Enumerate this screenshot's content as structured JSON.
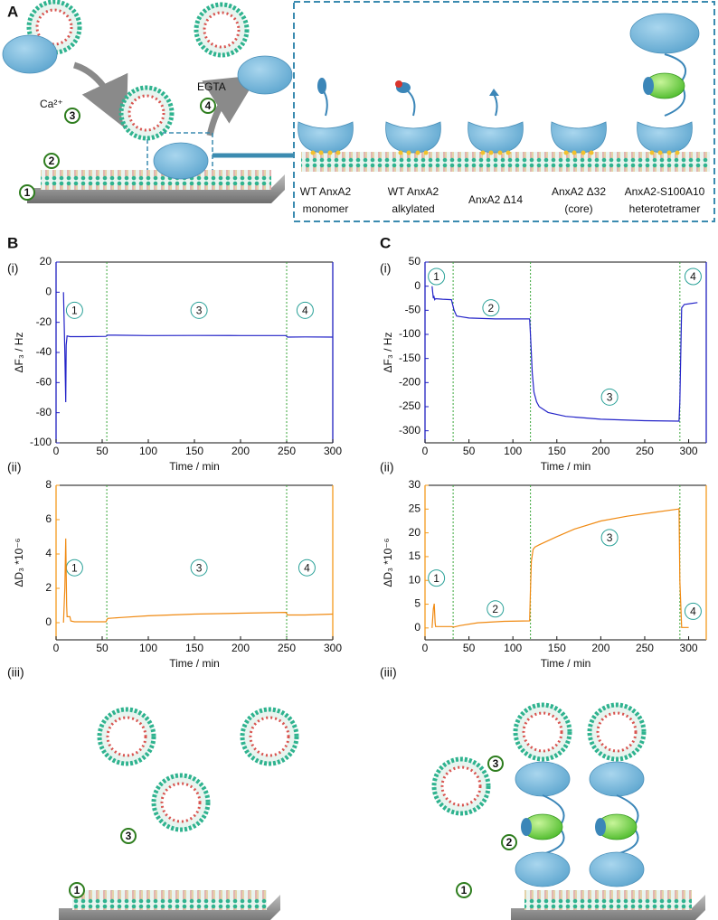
{
  "panels": {
    "a": "A",
    "b": "B",
    "c": "C",
    "b_i": "(i)",
    "b_ii": "(ii)",
    "b_iii": "(iii)",
    "c_i": "(i)",
    "c_ii": "(ii)",
    "c_iii": "(iii)"
  },
  "diagram": {
    "ca": "Ca²⁺",
    "egta": "EGTA",
    "steps_a": [
      "3",
      "4",
      "2",
      "1"
    ],
    "steps_b": [
      "3",
      "1"
    ],
    "steps_c": [
      "3",
      "2",
      "1"
    ],
    "proteins": [
      [
        "WT AnxA2",
        "monomer"
      ],
      [
        "WT AnxA2",
        "alkylated"
      ],
      [
        "AnxA2  Δ14"
      ],
      [
        "AnxA2   Δ32",
        "(core)"
      ],
      [
        "AnxA2-S100A10",
        "heterotetramer"
      ]
    ]
  },
  "chart_data": [
    {
      "type": "line",
      "xlabel": "Time / min",
      "ylabel": "ΔF₃ / Hz",
      "axis_color": "#1f1fbf",
      "xlim": [
        0,
        300
      ],
      "ylim": [
        -100,
        20
      ],
      "xticks": [
        0,
        50,
        100,
        150,
        200,
        250,
        300
      ],
      "yticks": [
        -100,
        -80,
        -60,
        -40,
        -20,
        0,
        20
      ],
      "vlines": [
        55,
        250
      ],
      "vline_color": "#3aa63a",
      "annotations": [
        "1",
        "3",
        "4"
      ],
      "series": [
        {
          "color": "#2323c8",
          "x": [
            8,
            9.5,
            10.5,
            11,
            12,
            15,
            30,
            54,
            56,
            100,
            150,
            200,
            249,
            251,
            270,
            300
          ],
          "values": [
            0,
            -40,
            -73,
            -35,
            -29,
            -29.5,
            -29.5,
            -29.3,
            -28.5,
            -28.8,
            -28.7,
            -28.8,
            -28.8,
            -29.8,
            -29.7,
            -29.8
          ]
        }
      ]
    },
    {
      "type": "line",
      "xlabel": "Time / min",
      "ylabel": "ΔD₃ *10⁻⁶",
      "axis_color": "#f39a1e",
      "xlim": [
        0,
        300
      ],
      "ylim": [
        -1,
        8
      ],
      "xticks": [
        0,
        50,
        100,
        150,
        200,
        250,
        300
      ],
      "yticks": [
        0,
        2,
        4,
        6,
        8
      ],
      "vlines": [
        55,
        250
      ],
      "vline_color": "#3aa63a",
      "annotations": [
        "1",
        "3",
        "4"
      ],
      "series": [
        {
          "color": "#f08a12",
          "x": [
            8,
            9.5,
            10.5,
            11.5,
            12,
            15,
            16,
            20,
            40,
            54,
            56,
            70,
            100,
            150,
            200,
            249,
            251,
            270,
            300
          ],
          "values": [
            0,
            2,
            4.9,
            1,
            0.35,
            0.35,
            0.1,
            0.05,
            0.05,
            0.05,
            0.25,
            0.3,
            0.4,
            0.5,
            0.55,
            0.6,
            0.45,
            0.45,
            0.5
          ]
        }
      ]
    },
    {
      "type": "line",
      "xlabel": "Time / min",
      "ylabel": "ΔF₃ / Hz",
      "axis_color": "#1f1fbf",
      "xlim": [
        0,
        320
      ],
      "ylim": [
        -325,
        50
      ],
      "xticks": [
        0,
        50,
        100,
        150,
        200,
        250,
        300
      ],
      "yticks": [
        -300,
        -250,
        -200,
        -150,
        -100,
        -50,
        0,
        50
      ],
      "vlines": [
        32,
        120,
        290
      ],
      "vline_color": "#3aa63a",
      "annotations": [
        "1",
        "2",
        "3",
        "4"
      ],
      "series": [
        {
          "color": "#2323c8",
          "x": [
            8,
            9.5,
            10,
            11,
            12,
            20,
            30,
            33,
            36,
            50,
            80,
            119,
            120,
            122,
            124,
            127,
            130,
            140,
            160,
            200,
            250,
            289,
            290,
            292,
            295,
            310
          ],
          "values": [
            0,
            -25,
            -20,
            -28,
            -26,
            -27,
            -28,
            -50,
            -62,
            -66,
            -68,
            -68,
            -100,
            -180,
            -220,
            -240,
            -250,
            -262,
            -270,
            -276,
            -279,
            -280,
            -240,
            -45,
            -38,
            -34
          ]
        }
      ]
    },
    {
      "type": "line",
      "xlabel": "Time / min",
      "ylabel": "ΔD₃ *10⁻⁶",
      "axis_color": "#f39a1e",
      "xlim": [
        0,
        320
      ],
      "ylim": [
        -2.5,
        30
      ],
      "xticks": [
        0,
        50,
        100,
        150,
        200,
        250,
        300
      ],
      "yticks": [
        0,
        5,
        10,
        15,
        20,
        25,
        30
      ],
      "vlines": [
        32,
        120,
        290
      ],
      "vline_color": "#3aa63a",
      "annotations": [
        "1",
        "2",
        "3",
        "4"
      ],
      "series": [
        {
          "color": "#f08a12",
          "x": [
            8,
            9.5,
            10.5,
            11.5,
            12,
            20,
            30,
            33,
            40,
            60,
            90,
            119,
            120,
            121,
            123,
            125,
            130,
            150,
            170,
            200,
            230,
            260,
            288,
            289,
            290,
            292,
            300
          ],
          "values": [
            0,
            4,
            5.1,
            1,
            0.3,
            0.3,
            0.3,
            0.2,
            0.5,
            1.1,
            1.4,
            1.5,
            8,
            14,
            16.5,
            17,
            17.5,
            19.2,
            20.8,
            22.5,
            23.5,
            24.3,
            25,
            25.1,
            10,
            0.1,
            0.1
          ]
        }
      ]
    }
  ]
}
